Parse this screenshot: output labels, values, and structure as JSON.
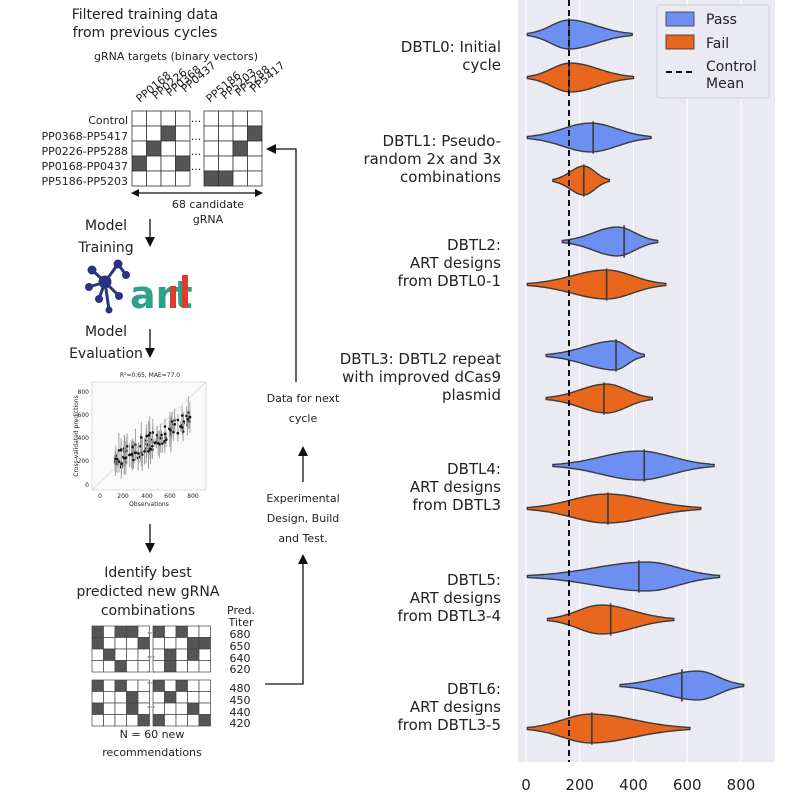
{
  "workflow": {
    "title_lines": [
      "Filtered training data",
      "from previous cycles"
    ],
    "targets_caption": "gRNA targets (binary vectors)",
    "column_labels_left": [
      "PP0168",
      "PP0226",
      "PP0368",
      "PP0437"
    ],
    "column_labels_right": [
      "PP5186",
      "PP5203",
      "PP5288",
      "PP5417"
    ],
    "row_labels": [
      "Control",
      "PP0368-PP5417",
      "PP0226-PP5288",
      "PP0168-PP0437",
      "PP5186-PP5203"
    ],
    "ellipsis": "···",
    "candidate_caption_lines": [
      "68 candidate",
      "gRNA"
    ],
    "model_training_lines": [
      "Model",
      "Training"
    ],
    "art_logo_text": "art",
    "model_evaluation_lines": [
      "Model",
      "Evaluation"
    ],
    "scatter_title": "R²=0.65, MAE=77.0",
    "scatter_xlabel": "Observations",
    "scatter_ylabel": "Cross-validated predictions",
    "scatter_ticks": [
      "0",
      "200",
      "400",
      "600",
      "800"
    ],
    "identify_lines": [
      "Identify best",
      "predicted new gRNA",
      "combinations"
    ],
    "pred_titer_lines": [
      "Pred.",
      "Titer"
    ],
    "titers_top": [
      "680",
      "650",
      "640",
      "620"
    ],
    "titers_bottom": [
      "480",
      "450",
      "440",
      "420"
    ],
    "recommend_lines": [
      "N = 60 new",
      "recommendations"
    ],
    "experimental_lines": [
      "Experimental",
      "Design, Build",
      "and Test."
    ],
    "data_next_lines": [
      "Data for next",
      "cycle"
    ]
  },
  "chart_data": {
    "type": "violin",
    "orientation": "horizontal",
    "categories": [
      [
        "DBTL0: Initial",
        "cycle"
      ],
      [
        "DBTL1: Pseudo-",
        "random 2x and 3x",
        "combinations"
      ],
      [
        "DBTL2:",
        "ART designs",
        "from DBTL0-1"
      ],
      [
        "DBTL3: DBTL2 repeat",
        "with improved dCas9",
        "plasmid"
      ],
      [
        "DBTL4:",
        "ART designs",
        "from DBTL3"
      ],
      [
        "DBTL5:",
        "ART designs",
        "from DBTL3-4"
      ],
      [
        "DBTL6:",
        "ART designs",
        "from DBTL3-5"
      ]
    ],
    "series": [
      {
        "name": "Pass",
        "color": "#6d8ff2",
        "violins": [
          {
            "min": 5,
            "max": 395,
            "mean": 160,
            "peak": 160,
            "width": 0.85
          },
          {
            "min": 5,
            "max": 465,
            "mean": 250,
            "peak": 240,
            "width": 0.85
          },
          {
            "min": 135,
            "max": 490,
            "mean": 365,
            "peak": 340,
            "width": 0.85
          },
          {
            "min": 75,
            "max": 440,
            "mean": 335,
            "peak": 330,
            "width": 0.85
          },
          {
            "min": 100,
            "max": 700,
            "mean": 440,
            "peak": 420,
            "width": 0.85
          },
          {
            "min": 5,
            "max": 720,
            "mean": 420,
            "peak": 450,
            "width": 0.85
          },
          {
            "min": 350,
            "max": 810,
            "mean": 580,
            "peak": 640,
            "width": 0.85
          }
        ]
      },
      {
        "name": "Fail",
        "color": "#e8671c",
        "violins": [
          {
            "min": 5,
            "max": 400,
            "mean": 160,
            "peak": 165,
            "width": 0.85
          },
          {
            "min": 100,
            "max": 310,
            "mean": 215,
            "peak": 215,
            "width": 0.85
          },
          {
            "min": 5,
            "max": 520,
            "mean": 300,
            "peak": 300,
            "width": 0.85
          },
          {
            "min": 75,
            "max": 470,
            "mean": 290,
            "peak": 300,
            "width": 0.85
          },
          {
            "min": 5,
            "max": 650,
            "mean": 305,
            "peak": 300,
            "width": 0.85
          },
          {
            "min": 80,
            "max": 550,
            "mean": 315,
            "peak": 280,
            "width": 0.85
          },
          {
            "min": 5,
            "max": 610,
            "mean": 245,
            "peak": 240,
            "width": 0.85
          }
        ]
      }
    ],
    "control_mean": 160,
    "xlim": [
      -10,
      920
    ],
    "xticks": [
      0,
      200,
      400,
      600,
      800
    ],
    "xlabel": "",
    "legend": {
      "placement": "top-right",
      "items": [
        "Pass",
        "Fail",
        [
          "Control",
          "Mean"
        ]
      ]
    },
    "grid": true,
    "background": "#eaeaf2"
  }
}
